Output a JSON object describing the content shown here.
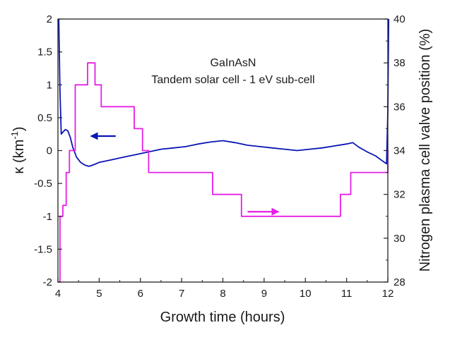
{
  "chart_data": {
    "type": "line",
    "annotations": [
      "GaInAsN",
      "Tandem solar cell - 1 eV sub-cell"
    ],
    "xlabel": "Growth time (hours)",
    "ylabel_left_main": "κ (km",
    "ylabel_left_sup": "-1",
    "ylabel_left_close": ")",
    "ylabel_right": "Nitrogen plasma cell valve position (%)",
    "xlim": [
      4,
      12
    ],
    "ylim_left": [
      -2,
      2
    ],
    "ylim_right": [
      28,
      40
    ],
    "x_ticks": [
      "4",
      "5",
      "6",
      "7",
      "8",
      "9",
      "10",
      "11",
      "12"
    ],
    "y_left_ticks": [
      "2",
      "1.5",
      "1",
      "0.5",
      "0",
      "-0.5",
      "-1",
      "-1.5",
      "-2"
    ],
    "y_right_ticks": [
      "40",
      "38",
      "36",
      "34",
      "32",
      "30",
      "28"
    ],
    "grid": false,
    "series": [
      {
        "axis": "left",
        "color": "#0a14b4",
        "x": [
          4.02,
          4.05,
          4.08,
          4.12,
          4.18,
          4.24,
          4.3,
          4.36,
          4.45,
          4.55,
          4.65,
          4.75,
          4.85,
          5.0,
          5.3,
          5.6,
          5.9,
          6.2,
          6.5,
          6.8,
          7.1,
          7.4,
          7.7,
          8.0,
          8.3,
          8.6,
          8.9,
          9.2,
          9.5,
          9.8,
          10.1,
          10.4,
          10.7,
          11.0,
          11.15,
          11.3,
          11.5,
          11.7,
          11.92,
          11.97,
          12.0,
          12.02
        ],
        "y": [
          2.0,
          0.9,
          0.25,
          0.28,
          0.32,
          0.3,
          0.2,
          0.05,
          -0.1,
          -0.18,
          -0.22,
          -0.24,
          -0.22,
          -0.18,
          -0.14,
          -0.1,
          -0.06,
          -0.02,
          0.02,
          0.04,
          0.06,
          0.1,
          0.13,
          0.15,
          0.12,
          0.08,
          0.06,
          0.04,
          0.02,
          0.0,
          0.02,
          0.04,
          0.07,
          0.1,
          0.12,
          0.05,
          -0.02,
          -0.08,
          -0.18,
          -0.2,
          0.6,
          2.0
        ]
      },
      {
        "axis": "right",
        "color": "#e61ee6",
        "step": true,
        "x": [
          4.0,
          4.05,
          4.12,
          4.2,
          4.28,
          4.42,
          4.72,
          4.9,
          5.05,
          5.85,
          6.05,
          6.2,
          7.75,
          8.45,
          10.85,
          11.1,
          12.0,
          12.02
        ],
        "y": [
          28.0,
          31.0,
          31.5,
          33.0,
          34.0,
          37.0,
          38.0,
          37.0,
          36.0,
          35.0,
          34.0,
          33.0,
          32.0,
          31.0,
          32.0,
          33.0,
          34.0,
          34.0
        ]
      }
    ],
    "arrows": [
      {
        "axis": "left",
        "direction": "left",
        "color": "#0a14b4",
        "x": [
          4.8,
          5.4
        ],
        "y": 0.22
      },
      {
        "axis": "left",
        "direction": "right",
        "color": "#e61ee6",
        "x": [
          8.6,
          9.35
        ],
        "y": -0.93
      }
    ]
  }
}
